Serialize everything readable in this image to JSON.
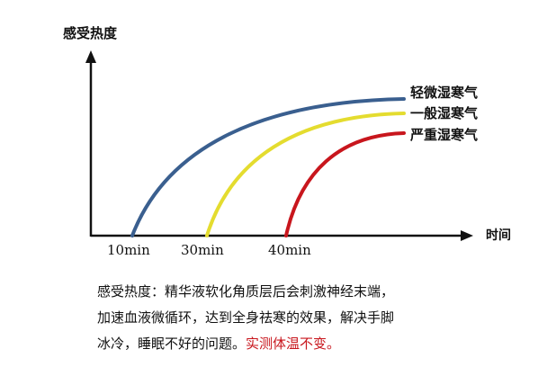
{
  "chart_data": {
    "type": "line",
    "title": "",
    "ylabel": "感受热度",
    "xlabel": "时间",
    "x_ticks": [
      "10min",
      "30min",
      "40min"
    ],
    "series": [
      {
        "name": "轻微湿寒气",
        "start_x": "10min",
        "color": "#3a5f8f"
      },
      {
        "name": "一般湿寒气",
        "start_x": "30min",
        "color": "#e4dc2f"
      },
      {
        "name": "严重湿寒气",
        "start_x": "40min",
        "color": "#c8161d"
      }
    ],
    "grid": false,
    "legend": "right-of-lines"
  },
  "description": {
    "line1": "感受热度：精华液软化角质层后会刺激神经末端，",
    "line2": "加速血液微循环，达到全身祛寒的效果，解决手脚",
    "line3_normal": "冰冷，睡眠不好的问题。",
    "line3_highlight": "实测体温不变。"
  }
}
